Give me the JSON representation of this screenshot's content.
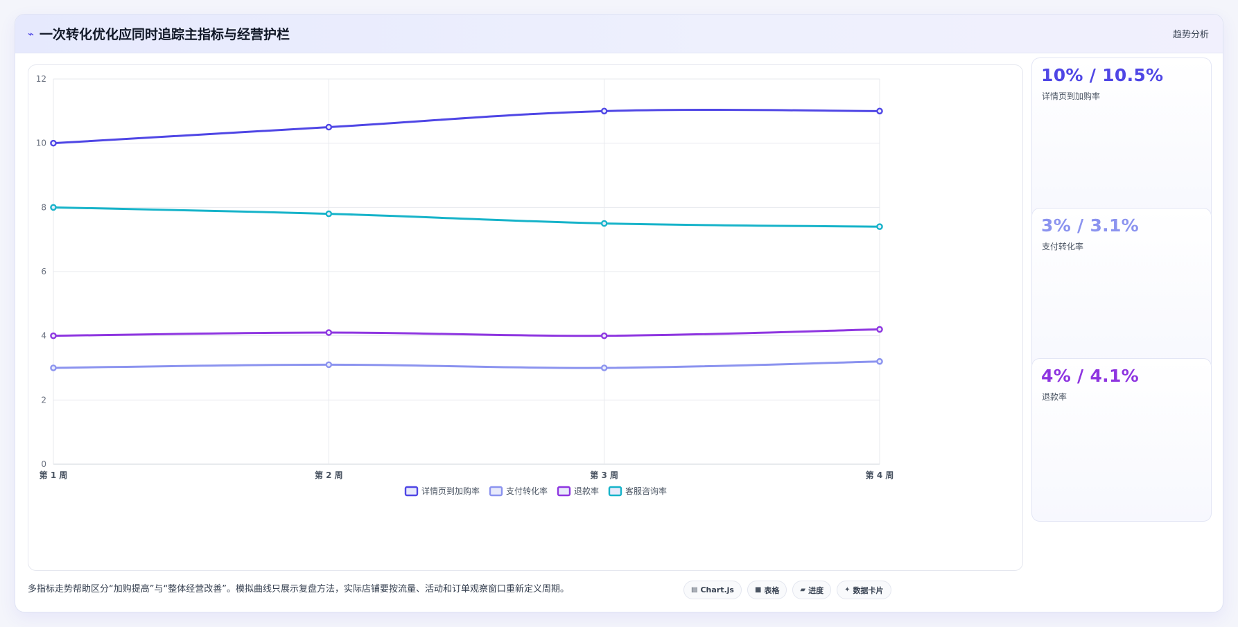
{
  "header": {
    "title": "一次转化优化应同时追踪主指标与经营护栏",
    "icon": "bolt-icon",
    "badge": "趋势分析"
  },
  "chart_data": {
    "type": "line",
    "x": [
      "第 1 周",
      "第 2 周",
      "第 3 周",
      "第 4 周"
    ],
    "ylim": [
      0,
      12
    ],
    "yticks": [
      0,
      2,
      4,
      6,
      8,
      10,
      12
    ],
    "grid": true,
    "legend_position": "bottom",
    "series": [
      {
        "name": "详情页到加购率",
        "color": "#4f46e5",
        "values": [
          10,
          10.5,
          11,
          11
        ]
      },
      {
        "name": "支付转化率",
        "color": "#8b93ef",
        "values": [
          3,
          3.1,
          3,
          3.2
        ]
      },
      {
        "name": "退款率",
        "color": "#8e35e0",
        "values": [
          4,
          4.1,
          4,
          4.2
        ]
      },
      {
        "name": "客服咨询率",
        "color": "#16b3c9",
        "values": [
          8,
          7.8,
          7.5,
          7.4
        ]
      }
    ]
  },
  "kpis": [
    {
      "value": "10% / 10.5%",
      "label": "详情页到加购率",
      "color": "#4f46e5"
    },
    {
      "value": "3% / 3.1%",
      "label": "支付转化率",
      "color": "#8b93ef"
    },
    {
      "value": "4% / 4.1%",
      "label": "退款率",
      "color": "#8e35e0"
    }
  ],
  "footer": {
    "note": "多指标走势帮助区分“加购提高”与“整体经营改善”。模拟曲线只展示复盘方法，实际店铺要按流量、活动和订单观察窗口重新定义周期。",
    "tags": [
      {
        "icon": "chart-icon",
        "glyph": "▤",
        "label": "Chart.js"
      },
      {
        "icon": "table-icon",
        "glyph": "■",
        "label": "表格"
      },
      {
        "icon": "progress-icon",
        "glyph": "▰",
        "label": "进度"
      },
      {
        "icon": "sparkle-icon",
        "glyph": "✦",
        "label": "数据卡片"
      }
    ]
  }
}
